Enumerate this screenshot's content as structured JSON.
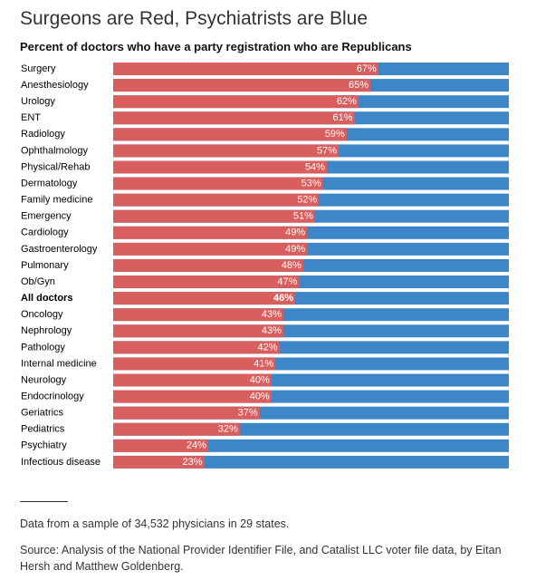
{
  "chart_data": {
    "type": "bar",
    "title": "Surgeons are Red, Psychiatrists are Blue",
    "subtitle": "Percent of doctors who have a party registration who are Republicans",
    "categories": [
      "Surgery",
      "Anesthesiology",
      "Urology",
      "ENT",
      "Radiology",
      "Ophthalmology",
      "Physical/Rehab",
      "Dermatology",
      "Family medicine",
      "Emergency",
      "Cardiology",
      "Gastroenterology",
      "Pulmonary",
      "Ob/Gyn",
      "All doctors",
      "Oncology",
      "Nephrology",
      "Pathology",
      "Internal medicine",
      "Neurology",
      "Endocrinology",
      "Geriatrics",
      "Pediatrics",
      "Psychiatry",
      "Infectious disease"
    ],
    "values": [
      67,
      65,
      62,
      61,
      59,
      57,
      54,
      53,
      52,
      51,
      49,
      49,
      48,
      47,
      46,
      43,
      43,
      42,
      41,
      40,
      40,
      37,
      32,
      24,
      23
    ],
    "value_labels": [
      "67%",
      "65%",
      "62%",
      "61%",
      "59%",
      "57%",
      "54%",
      "53%",
      "52%",
      "51%",
      "49%",
      "49%",
      "48%",
      "47%",
      "46%",
      "43%",
      "43%",
      "42%",
      "41%",
      "40%",
      "40%",
      "37%",
      "32%",
      "24%",
      "23%"
    ],
    "color": "#d95f5f",
    "track_color": "#3d87c9",
    "highlight": "All doctors",
    "xlim": [
      0,
      100
    ],
    "notes": [
      "Data from a sample of 34,532 physicians in 29 states.",
      "Source: Analysis of the National Provider Identifier File, and Catalist LLC voter file data, by Eitan Hersh and Matthew Goldenberg."
    ]
  }
}
